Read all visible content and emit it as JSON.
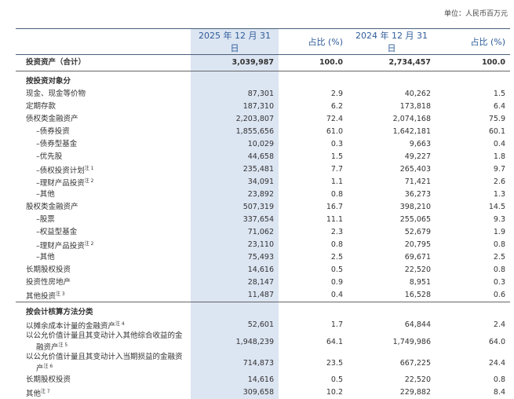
{
  "unit": "单位：人民币百万元",
  "table": {
    "header": [
      "2025 年 12 月 31 日",
      "占比 (%)",
      "2024 年 12 月 31 日",
      "占比 (%)"
    ],
    "total": {
      "label": "投资资产（合计）",
      "cells": [
        "3,039,987",
        "100.0",
        "2,734,457",
        "100.0"
      ]
    },
    "sections": [
      {
        "title": "按投资对象分",
        "rows": [
          {
            "label": "现金、现金等价物",
            "cells": [
              "87,301",
              "2.9",
              "40,262",
              "1.5"
            ]
          },
          {
            "label": "定期存款",
            "cells": [
              "187,310",
              "6.2",
              "173,818",
              "6.4"
            ]
          },
          {
            "label": "债权类金融资产",
            "cells": [
              "2,203,807",
              "72.4",
              "2,074,168",
              "75.9"
            ]
          },
          {
            "label": "–债券投资",
            "cells": [
              "1,855,656",
              "61.0",
              "1,642,181",
              "60.1"
            ]
          },
          {
            "label": "–债券型基金",
            "cells": [
              "10,029",
              "0.3",
              "9,663",
              "0.4"
            ]
          },
          {
            "label": "–优先股",
            "cells": [
              "44,658",
              "1.5",
              "49,227",
              "1.8"
            ]
          },
          {
            "label": "–债权投资计划",
            "note": "注 1",
            "cells": [
              "235,481",
              "7.7",
              "265,403",
              "9.7"
            ]
          },
          {
            "label": "–理财产品投资",
            "note": "注 2",
            "cells": [
              "34,091",
              "1.1",
              "71,421",
              "2.6"
            ]
          },
          {
            "label": "–其他",
            "cells": [
              "23,892",
              "0.8",
              "36,273",
              "1.3"
            ]
          },
          {
            "label": "股权类金融资产",
            "cells": [
              "507,319",
              "16.7",
              "398,210",
              "14.5"
            ]
          },
          {
            "label": "–股票",
            "cells": [
              "337,654",
              "11.1",
              "255,065",
              "9.3"
            ]
          },
          {
            "label": "–权益型基金",
            "cells": [
              "71,062",
              "2.3",
              "52,679",
              "1.9"
            ]
          },
          {
            "label": "–理财产品投资",
            "note": "注 2",
            "cells": [
              "23,110",
              "0.8",
              "20,795",
              "0.8"
            ]
          },
          {
            "label": "–其他",
            "cells": [
              "75,493",
              "2.5",
              "69,671",
              "2.5"
            ]
          },
          {
            "label": "长期股权投资",
            "cells": [
              "14,616",
              "0.5",
              "22,520",
              "0.8"
            ]
          },
          {
            "label": "投资性房地产",
            "cells": [
              "28,147",
              "0.9",
              "8,951",
              "0.3"
            ]
          },
          {
            "label": "其他投资",
            "note": "注 3",
            "cells": [
              "11,487",
              "0.4",
              "16,528",
              "0.6"
            ]
          }
        ]
      },
      {
        "title": "按会计核算方法分类",
        "rows": [
          {
            "label": "以摊余成本计量的金融资产",
            "note": "注 4",
            "cells": [
              "52,601",
              "1.7",
              "64,844",
              "2.4"
            ]
          },
          {
            "label": "以公允价值计量且其变动计入其他综合收益的金融资产",
            "note": "注 5",
            "cells": [
              "1,948,239",
              "64.1",
              "1,749,986",
              "64.0"
            ]
          },
          {
            "label": "以公允价值计量且其变动计入当期损益的金融资产",
            "note": "注 6",
            "cells": [
              "714,873",
              "23.5",
              "667,225",
              "24.4"
            ]
          },
          {
            "label": "长期股权投资",
            "cells": [
              "14,616",
              "0.5",
              "22,520",
              "0.8"
            ]
          },
          {
            "label": "其他",
            "note": "注 7",
            "cells": [
              "309,658",
              "10.2",
              "229,882",
              "8.4"
            ]
          }
        ]
      }
    ]
  }
}
